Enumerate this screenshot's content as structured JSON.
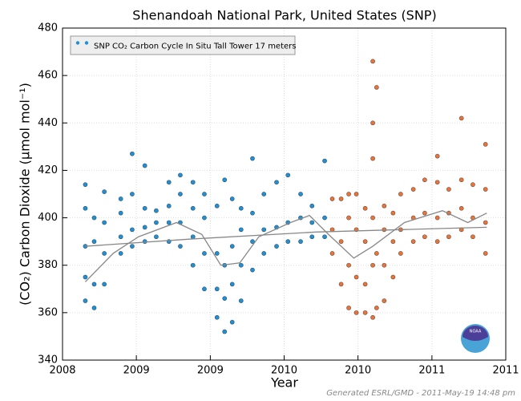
{
  "chart_data": {
    "type": "scatter",
    "title": "Shenandoah National Park, United States (SNP)",
    "x_label": "Year",
    "y_label": "(CO₂) Carbon Dioxide (μmol mol⁻¹)",
    "footer": "Generated ESRL/GMD - 2011-May-19 14:48 pm",
    "logo": "NOAA",
    "xlim": [
      2008,
      2011.5
    ],
    "xticks": [
      {
        "value": 2008,
        "label": "2008"
      },
      {
        "value": 2008.583,
        "label": "2009"
      },
      {
        "value": 2009.167,
        "label": "2009"
      },
      {
        "value": 2009.75,
        "label": "2010"
      },
      {
        "value": 2010.333,
        "label": "2010"
      },
      {
        "value": 2010.917,
        "label": "2011"
      },
      {
        "value": 2011.5,
        "label": "2011"
      }
    ],
    "ylim": [
      340,
      480
    ],
    "yticks": [
      340,
      360,
      380,
      400,
      420,
      440,
      460,
      480
    ],
    "grid": true,
    "legend": "upper left",
    "series": [
      {
        "name": "SNP CO₂ Carbon Cycle In Situ Tall Tower 17 meters",
        "color": "#1f8fd6",
        "x": [
          2008.18,
          2008.18,
          2008.18,
          2008.18,
          2008.18,
          2008.25,
          2008.25,
          2008.25,
          2008.25,
          2008.33,
          2008.33,
          2008.33,
          2008.33,
          2008.46,
          2008.46,
          2008.46,
          2008.46,
          2008.55,
          2008.55,
          2008.55,
          2008.55,
          2008.65,
          2008.65,
          2008.65,
          2008.65,
          2008.74,
          2008.74,
          2008.74,
          2008.84,
          2008.84,
          2008.84,
          2008.84,
          2008.93,
          2008.93,
          2008.93,
          2008.93,
          2009.03,
          2009.03,
          2009.03,
          2009.03,
          2009.12,
          2009.12,
          2009.12,
          2009.12,
          2009.22,
          2009.22,
          2009.22,
          2009.22,
          2009.28,
          2009.28,
          2009.28,
          2009.28,
          2009.34,
          2009.34,
          2009.34,
          2009.34,
          2009.41,
          2009.41,
          2009.41,
          2009.41,
          2009.5,
          2009.5,
          2009.5,
          2009.5,
          2009.59,
          2009.59,
          2009.59,
          2009.69,
          2009.69,
          2009.69,
          2009.78,
          2009.78,
          2009.78,
          2009.88,
          2009.88,
          2009.88,
          2009.97,
          2009.97,
          2009.97,
          2010.07,
          2010.07,
          2010.07
        ],
        "values": [
          365,
          375,
          388,
          404,
          414,
          362,
          372,
          390,
          400,
          372,
          385,
          398,
          411,
          385,
          392,
          402,
          408,
          388,
          395,
          410,
          427,
          390,
          396,
          404,
          422,
          392,
          398,
          403,
          390,
          398,
          405,
          415,
          388,
          398,
          410,
          418,
          380,
          392,
          404,
          415,
          370,
          385,
          400,
          410,
          358,
          370,
          385,
          405,
          352,
          366,
          380,
          416,
          356,
          372,
          388,
          408,
          365,
          380,
          395,
          404,
          378,
          390,
          402,
          425,
          385,
          395,
          410,
          388,
          396,
          415,
          390,
          398,
          418,
          390,
          400,
          410,
          392,
          398,
          405,
          392,
          400,
          424
        ]
      },
      {
        "color": "#e8743b",
        "x": [
          2010.13,
          2010.13,
          2010.13,
          2010.2,
          2010.2,
          2010.2,
          2010.26,
          2010.26,
          2010.26,
          2010.26,
          2010.32,
          2010.32,
          2010.32,
          2010.32,
          2010.39,
          2010.39,
          2010.39,
          2010.39,
          2010.45,
          2010.45,
          2010.45,
          2010.45,
          2010.45,
          2010.45,
          2010.48,
          2010.48,
          2010.48,
          2010.54,
          2010.54,
          2010.54,
          2010.54,
          2010.61,
          2010.61,
          2010.61,
          2010.67,
          2010.67,
          2010.67,
          2010.77,
          2010.77,
          2010.77,
          2010.86,
          2010.86,
          2010.86,
          2010.96,
          2010.96,
          2010.96,
          2010.96,
          2011.05,
          2011.05,
          2011.05,
          2011.15,
          2011.15,
          2011.15,
          2011.15,
          2011.24,
          2011.24,
          2011.24,
          2011.34,
          2011.34,
          2011.34,
          2011.34
        ],
        "values": [
          385,
          395,
          408,
          372,
          390,
          408,
          362,
          380,
          400,
          410,
          360,
          375,
          395,
          410,
          360,
          372,
          390,
          404,
          358,
          380,
          400,
          425,
          440,
          466,
          362,
          385,
          455,
          365,
          380,
          395,
          405,
          375,
          390,
          402,
          385,
          395,
          410,
          390,
          400,
          412,
          392,
          402,
          416,
          390,
          400,
          415,
          426,
          392,
          402,
          412,
          395,
          404,
          416,
          442,
          392,
          400,
          414,
          385,
          398,
          412,
          431
        ]
      }
    ],
    "curves": [
      {
        "color": "#888888",
        "x": [
          2008.18,
          2008.4,
          2008.6,
          2008.9,
          2009.1,
          2009.25,
          2009.4,
          2009.55,
          2009.8,
          2009.95,
          2010.1,
          2010.3,
          2010.45,
          2010.7,
          2011.0,
          2011.2,
          2011.35
        ],
        "values": [
          373,
          385,
          392,
          398,
          393,
          380,
          381,
          392,
          398,
          401,
          393,
          383,
          388,
          398,
          403,
          398,
          402
        ]
      },
      {
        "color": "#888888",
        "x": [
          2008.18,
          2009.0,
          2010.0,
          2011.0,
          2011.35
        ],
        "values": [
          388,
          391,
          394,
          395.5,
          396
        ]
      }
    ]
  }
}
